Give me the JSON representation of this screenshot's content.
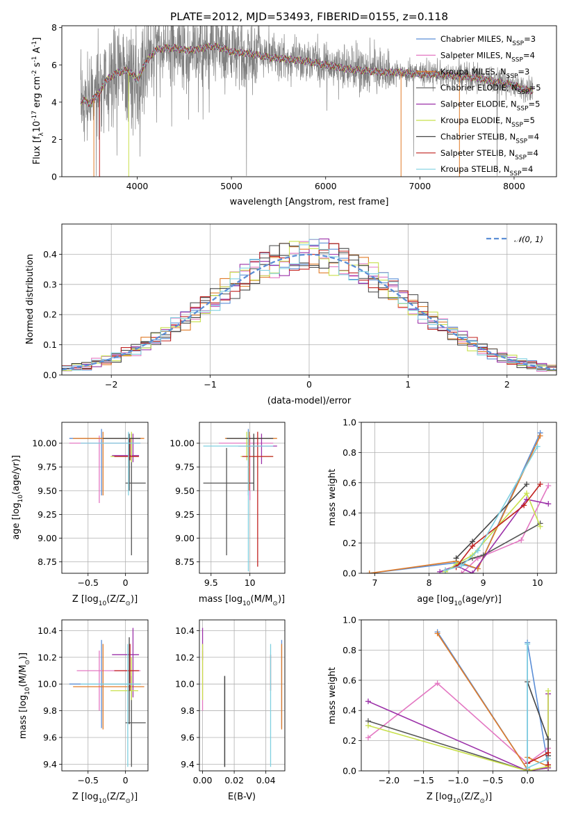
{
  "figure_title": "PLATE=2012, MJD=53493, FIBERID=0155, z=0.118",
  "models": [
    {
      "key": "chabrier_miles",
      "label": "Chabrier MILES, N",
      "nssp": "3",
      "color": "#5b8ed6"
    },
    {
      "key": "salpeter_miles",
      "label": "Salpeter MILES, N",
      "nssp": "4",
      "color": "#e377c2"
    },
    {
      "key": "kroupa_miles",
      "label": "Kroupa MILES, N",
      "nssp": "3",
      "color": "#e07b28"
    },
    {
      "key": "chabrier_elodie",
      "label": "Chabrier ELODIE, N",
      "nssp": "5",
      "color": "#555555"
    },
    {
      "key": "salpeter_elodie",
      "label": "Salpeter ELODIE, N",
      "nssp": "5",
      "color": "#9b30a8"
    },
    {
      "key": "kroupa_elodie",
      "label": "Kroupa ELODIE, N",
      "nssp": "5",
      "color": "#c8e04a"
    },
    {
      "key": "chabrier_stelib",
      "label": "Chabrier STELIB, N",
      "nssp": "4",
      "color": "#444444"
    },
    {
      "key": "salpeter_stelib",
      "label": "Salpeter STELIB, N",
      "nssp": "4",
      "color": "#c0201e"
    },
    {
      "key": "kroupa_stelib",
      "label": "Kroupa STELIB, N",
      "nssp": "4",
      "color": "#7fd0e0"
    }
  ],
  "nssp_sub": "SSP",
  "chart_data": [
    {
      "id": "spectrum",
      "type": "line",
      "xlabel": "wavelength [Angstrom, rest frame]",
      "ylabel": "Flux [f",
      "ylabel_sub": "λ",
      "ylabel_rest": "10",
      "ylabel_exp": "-17",
      "ylabel_units": " erg cm",
      "ylabel_units_exp": "-2",
      "ylabel_units2": " s",
      "ylabel_units2_exp": "-1",
      "ylabel_units3": " A",
      "ylabel_units3_exp": "-1",
      "ylabel_end": "]",
      "xlim": [
        3200,
        8450
      ],
      "ylim": [
        0,
        8.1
      ],
      "xticks": [
        4000,
        5000,
        6000,
        7000,
        8000
      ],
      "yticks": [
        0,
        2,
        4,
        6,
        8
      ],
      "grid": false,
      "legend": "top-right",
      "continuum": {
        "x": [
          3400,
          3450,
          3500,
          3550,
          3600,
          3650,
          3700,
          3800,
          3900,
          3950,
          4000,
          4100,
          4200,
          4300,
          4400,
          4500,
          4600,
          4700,
          4800,
          4900,
          5000,
          5200,
          5400,
          5600,
          5800,
          6000,
          6200,
          6400,
          6600,
          6800,
          7000,
          7200,
          7400,
          7600,
          7800,
          8000,
          8100,
          8200
        ],
        "y": [
          4.0,
          4.1,
          3.9,
          4.3,
          4.5,
          5.0,
          5.3,
          5.6,
          5.7,
          5.5,
          5.2,
          6.2,
          6.8,
          6.9,
          6.9,
          6.8,
          6.8,
          6.9,
          7.0,
          6.9,
          6.7,
          6.6,
          6.4,
          6.3,
          6.2,
          6.0,
          5.8,
          5.7,
          5.6,
          5.6,
          5.5,
          5.5,
          5.4,
          5.3,
          5.1,
          4.9,
          4.7,
          4.6
        ]
      }
    },
    {
      "id": "residuals",
      "type": "line",
      "xlabel": "(data-model)/error",
      "ylabel": "Normed distribution",
      "xlim": [
        -2.5,
        2.5
      ],
      "ylim": [
        0,
        0.5
      ],
      "xticks": [
        -2,
        -1,
        0,
        1,
        2
      ],
      "yticks": [
        0.0,
        0.1,
        0.2,
        0.3,
        0.4
      ],
      "grid": true,
      "legend": "top-right",
      "normal_label": "𝒩(0, 1)"
    },
    {
      "id": "age_vs_Z",
      "type": "scatter",
      "xlabel": "Z [log",
      "xlabel_sub": "10",
      "xlabel_rest": "(Z/Z",
      "xlabel_sub2": "⊙",
      "xlabel_end": ")]",
      "ylabel": "age  [log",
      "ylabel_sub": "10",
      "ylabel_rest": "(age/yr)]",
      "xlim": [
        -0.85,
        0.3
      ],
      "ylim": [
        8.63,
        10.22
      ],
      "xticks": [
        -0.5,
        0.0
      ],
      "yticks": [
        8.75,
        9.0,
        9.25,
        9.5,
        9.75,
        10.0
      ],
      "grid": true,
      "points": [
        {
          "x": -0.32,
          "y": 10.05,
          "xlo": -0.75,
          "xhi": 0.2,
          "ylo": 9.45,
          "yhi": 10.15,
          "m": 0
        },
        {
          "x": -0.35,
          "y": 10.0,
          "xlo": -0.75,
          "xhi": 0.2,
          "ylo": 9.37,
          "yhi": 10.08,
          "m": 1
        },
        {
          "x": -0.3,
          "y": 10.05,
          "xlo": -0.7,
          "xhi": 0.25,
          "ylo": 9.45,
          "yhi": 10.12,
          "m": 2
        },
        {
          "x": 0.08,
          "y": 9.58,
          "xlo": 0.0,
          "xhi": 0.27,
          "ylo": 8.82,
          "yhi": 10.1,
          "m": 3
        },
        {
          "x": 0.1,
          "y": 9.87,
          "xlo": -0.18,
          "xhi": 0.18,
          "ylo": 9.8,
          "yhi": 10.1,
          "m": 4
        },
        {
          "x": 0.08,
          "y": 9.86,
          "xlo": -0.2,
          "xhi": 0.17,
          "ylo": 9.8,
          "yhi": 10.12,
          "m": 5
        },
        {
          "x": 0.05,
          "y": 10.05,
          "xlo": -0.3,
          "xhi": 0.2,
          "ylo": 9.5,
          "yhi": 10.1,
          "m": 6
        },
        {
          "x": 0.06,
          "y": 9.86,
          "xlo": -0.15,
          "xhi": 0.18,
          "ylo": 9.82,
          "yhi": 10.05,
          "m": 7
        },
        {
          "x": 0.04,
          "y": 10.0,
          "xlo": -0.6,
          "xhi": 0.2,
          "ylo": 9.45,
          "yhi": 10.12,
          "m": 8
        }
      ]
    },
    {
      "id": "age_vs_mass",
      "type": "scatter",
      "xlabel": "mass [log",
      "xlabel_sub": "10",
      "xlabel_rest": "(M/M",
      "xlabel_sub2": "⊙",
      "xlabel_end": ")]",
      "ylabel": "",
      "xlim": [
        9.35,
        10.45
      ],
      "ylim": [
        8.63,
        10.22
      ],
      "xticks": [
        9.5,
        10.0
      ],
      "yticks": [
        8.75,
        9.0,
        9.25,
        9.5,
        9.75,
        10.0
      ],
      "grid": true,
      "points": [
        {
          "x": 9.98,
          "y": 10.05,
          "xlo": 9.7,
          "xhi": 10.3,
          "ylo": 9.45,
          "yhi": 10.15,
          "m": 0
        },
        {
          "x": 10.0,
          "y": 10.0,
          "xlo": 9.6,
          "xhi": 10.3,
          "ylo": 9.4,
          "yhi": 10.08,
          "m": 1
        },
        {
          "x": 9.99,
          "y": 10.05,
          "xlo": 9.68,
          "xhi": 10.35,
          "ylo": 9.5,
          "yhi": 10.12,
          "m": 2
        },
        {
          "x": 9.7,
          "y": 9.58,
          "xlo": 9.4,
          "xhi": 10.05,
          "ylo": 8.82,
          "yhi": 9.95,
          "m": 3
        },
        {
          "x": 10.15,
          "y": 9.97,
          "xlo": 9.85,
          "xhi": 10.35,
          "ylo": 9.78,
          "yhi": 10.1,
          "m": 4
        },
        {
          "x": 9.96,
          "y": 9.86,
          "xlo": 9.88,
          "xhi": 10.3,
          "ylo": 9.82,
          "yhi": 10.12,
          "m": 5
        },
        {
          "x": 10.05,
          "y": 10.05,
          "xlo": 9.7,
          "xhi": 10.3,
          "ylo": 9.5,
          "yhi": 10.1,
          "m": 6
        },
        {
          "x": 10.1,
          "y": 9.86,
          "xlo": 9.9,
          "xhi": 10.3,
          "ylo": 8.7,
          "yhi": 10.12,
          "m": 7
        },
        {
          "x": 9.98,
          "y": 9.97,
          "xlo": 9.4,
          "xhi": 10.3,
          "ylo": 8.65,
          "yhi": 10.12,
          "m": 8
        }
      ]
    },
    {
      "id": "weight_vs_age",
      "type": "line",
      "xlabel": "age  [log",
      "xlabel_sub": "10",
      "xlabel_rest": "(age/yr)]",
      "ylabel": "mass weight",
      "xlim": [
        6.75,
        10.35
      ],
      "ylim": [
        0,
        1.0
      ],
      "xticks": [
        7,
        8,
        9,
        10
      ],
      "yticks": [
        0.0,
        0.2,
        0.4,
        0.6,
        0.8,
        1.0
      ],
      "grid": true,
      "series": [
        {
          "m": 0,
          "x": [
            6.9,
            8.5,
            8.9,
            10.05
          ],
          "y": [
            0.0,
            0.07,
            0.03,
            0.93
          ]
        },
        {
          "m": 1,
          "x": [
            8.6,
            8.9,
            9.7,
            10.2
          ],
          "y": [
            0.0,
            0.1,
            0.22,
            0.58
          ]
        },
        {
          "m": 2,
          "x": [
            6.9,
            8.5,
            8.9,
            10.05
          ],
          "y": [
            0.0,
            0.08,
            0.03,
            0.91
          ]
        },
        {
          "m": 3,
          "x": [
            8.3,
            8.5,
            8.8,
            9.0,
            10.05
          ],
          "y": [
            0.02,
            0.05,
            0.1,
            0.12,
            0.33
          ]
        },
        {
          "m": 4,
          "x": [
            8.2,
            8.5,
            8.8,
            9.8,
            10.2
          ],
          "y": [
            0.01,
            0.05,
            0.0,
            0.49,
            0.46
          ]
        },
        {
          "m": 5,
          "x": [
            8.3,
            8.5,
            8.8,
            9.8,
            10.05
          ],
          "y": [
            0.01,
            0.06,
            0.12,
            0.53,
            0.31
          ]
        },
        {
          "m": 6,
          "x": [
            8.5,
            8.8,
            9.8
          ],
          "y": [
            0.1,
            0.21,
            0.59
          ]
        },
        {
          "m": 7,
          "x": [
            8.5,
            8.8,
            9.75,
            10.05
          ],
          "y": [
            0.04,
            0.18,
            0.45,
            0.59
          ]
        },
        {
          "m": 8,
          "x": [
            8.3,
            8.6,
            8.9,
            10.0
          ],
          "y": [
            0.02,
            0.05,
            0.15,
            0.84
          ]
        }
      ]
    },
    {
      "id": "mass_vs_Z",
      "type": "scatter",
      "xlabel": "Z [log",
      "xlabel_sub": "10",
      "xlabel_rest": "(Z/Z",
      "xlabel_sub2": "⊙",
      "xlabel_end": ")]",
      "ylabel": "mass [log",
      "ylabel_sub": "10",
      "ylabel_rest": "(M/M",
      "ylabel_sub2": "⊙",
      "ylabel_end": ")]",
      "xlim": [
        -0.85,
        0.3
      ],
      "ylim": [
        9.35,
        10.48
      ],
      "xticks": [
        -0.5,
        0.0
      ],
      "yticks": [
        9.4,
        9.6,
        9.8,
        10.0,
        10.2,
        10.4
      ],
      "grid": true,
      "points": [
        {
          "x": -0.32,
          "y": 10.0,
          "xlo": -0.75,
          "xhi": 0.2,
          "ylo": 9.67,
          "yhi": 10.33,
          "m": 0
        },
        {
          "x": -0.35,
          "y": 10.1,
          "xlo": -0.65,
          "xhi": 0.2,
          "ylo": 9.8,
          "yhi": 10.25,
          "m": 1
        },
        {
          "x": -0.3,
          "y": 9.98,
          "xlo": -0.7,
          "xhi": 0.25,
          "ylo": 9.66,
          "yhi": 10.3,
          "m": 2
        },
        {
          "x": 0.08,
          "y": 9.71,
          "xlo": 0.0,
          "xhi": 0.27,
          "ylo": 9.38,
          "yhi": 10.06,
          "m": 3
        },
        {
          "x": 0.1,
          "y": 10.22,
          "xlo": -0.18,
          "xhi": 0.18,
          "ylo": 9.9,
          "yhi": 10.42,
          "m": 4
        },
        {
          "x": 0.08,
          "y": 9.95,
          "xlo": -0.2,
          "xhi": 0.17,
          "ylo": 9.88,
          "yhi": 10.2,
          "m": 5
        },
        {
          "x": 0.05,
          "y": 10.0,
          "xlo": -0.3,
          "xhi": 0.2,
          "ylo": 9.7,
          "yhi": 10.35,
          "m": 6
        },
        {
          "x": 0.06,
          "y": 10.1,
          "xlo": -0.15,
          "xhi": 0.18,
          "ylo": 9.95,
          "yhi": 10.3,
          "m": 7
        },
        {
          "x": 0.03,
          "y": 10.0,
          "xlo": -0.6,
          "xhi": 0.2,
          "ylo": 9.38,
          "yhi": 10.3,
          "m": 8
        }
      ]
    },
    {
      "id": "mass_vs_ebv",
      "type": "scatter",
      "xlabel": "E(B-V)",
      "ylabel": "",
      "xlim": [
        -0.002,
        0.052
      ],
      "ylim": [
        9.35,
        10.48
      ],
      "xticks": [
        0.0,
        0.02,
        0.04
      ],
      "yticks": [
        9.4,
        9.6,
        9.8,
        10.0,
        10.2,
        10.4
      ],
      "xticklabels": [
        "0.00",
        "0.02",
        "0.04"
      ],
      "grid": true,
      "points": [
        {
          "x": 0.05,
          "y": 10.0,
          "xlo": 0.05,
          "xhi": 0.05,
          "ylo": 9.67,
          "yhi": 10.33,
          "m": 0
        },
        {
          "x": 0.0,
          "y": 10.1,
          "xlo": 0.0,
          "xhi": 0.0,
          "ylo": 9.8,
          "yhi": 10.25,
          "m": 1
        },
        {
          "x": 0.05,
          "y": 9.98,
          "xlo": 0.05,
          "xhi": 0.05,
          "ylo": 9.66,
          "yhi": 10.3,
          "m": 2
        },
        {
          "x": 0.014,
          "y": 9.71,
          "xlo": 0.014,
          "xhi": 0.014,
          "ylo": 9.38,
          "yhi": 10.06,
          "m": 3
        },
        {
          "x": 0.0,
          "y": 10.3,
          "xlo": 0.0,
          "xhi": 0.0,
          "ylo": 10.18,
          "yhi": 10.42,
          "m": 4
        },
        {
          "x": 0.0,
          "y": 10.05,
          "xlo": 0.0,
          "xhi": 0.0,
          "ylo": 9.88,
          "yhi": 10.3,
          "m": 5
        },
        {
          "x": 0.014,
          "y": 9.71,
          "xlo": 0.014,
          "xhi": 0.014,
          "ylo": 9.38,
          "yhi": 10.06,
          "m": 6
        },
        {
          "x": 0.043,
          "y": 10.1,
          "xlo": 0.043,
          "xhi": 0.043,
          "ylo": 9.95,
          "yhi": 10.22,
          "m": 7
        },
        {
          "x": 0.043,
          "y": 9.95,
          "xlo": 0.043,
          "xhi": 0.043,
          "ylo": 9.38,
          "yhi": 10.3,
          "m": 8
        }
      ]
    },
    {
      "id": "weight_vs_Z",
      "type": "line",
      "xlabel": "Z [log",
      "xlabel_sub": "10",
      "xlabel_rest": "(Z/Z",
      "xlabel_sub2": "⊙",
      "xlabel_end": ")]",
      "ylabel": "mass weight",
      "xlim": [
        -2.4,
        0.42
      ],
      "ylim": [
        0,
        1.0
      ],
      "xticks": [
        -2.0,
        -1.5,
        -1.0,
        -0.5,
        0.0
      ],
      "yticks": [
        0.0,
        0.2,
        0.4,
        0.6,
        0.8,
        1.0
      ],
      "xticklabels": [
        "−2.0",
        "−1.5",
        "−1.0",
        "−0.5",
        "0.0"
      ],
      "grid": true,
      "series": [
        {
          "m": 0,
          "x": [
            -1.3,
            0.0,
            0.0,
            0.3
          ],
          "y": [
            0.92,
            0.01,
            0.85,
            0.03
          ]
        },
        {
          "m": 1,
          "x": [
            -2.3,
            -1.3,
            0.0,
            0.3
          ],
          "y": [
            0.22,
            0.58,
            0.05,
            0.15
          ]
        },
        {
          "m": 2,
          "x": [
            -1.3,
            0.0,
            0.0,
            0.3
          ],
          "y": [
            0.91,
            0.01,
            0.09,
            0.03
          ]
        },
        {
          "m": 3,
          "x": [
            -2.3,
            0.0,
            0.3
          ],
          "y": [
            0.33,
            0.0,
            0.02
          ]
        },
        {
          "m": 4,
          "x": [
            -2.3,
            0.0,
            0.3,
            0.3
          ],
          "y": [
            0.46,
            0.0,
            0.02,
            0.51
          ]
        },
        {
          "m": 5,
          "x": [
            -2.3,
            0.0,
            0.3,
            0.3
          ],
          "y": [
            0.3,
            0.0,
            0.03,
            0.53
          ]
        },
        {
          "m": 6,
          "x": [
            0.0,
            0.3,
            0.3
          ],
          "y": [
            0.59,
            0.21,
            0.1
          ]
        },
        {
          "m": 7,
          "x": [
            0.0,
            0.3,
            0.3
          ],
          "y": [
            0.05,
            0.12,
            0.04
          ]
        },
        {
          "m": 8,
          "x": [
            0.0,
            0.0,
            0.3
          ],
          "y": [
            0.84,
            0.02,
            0.08
          ]
        }
      ]
    }
  ]
}
